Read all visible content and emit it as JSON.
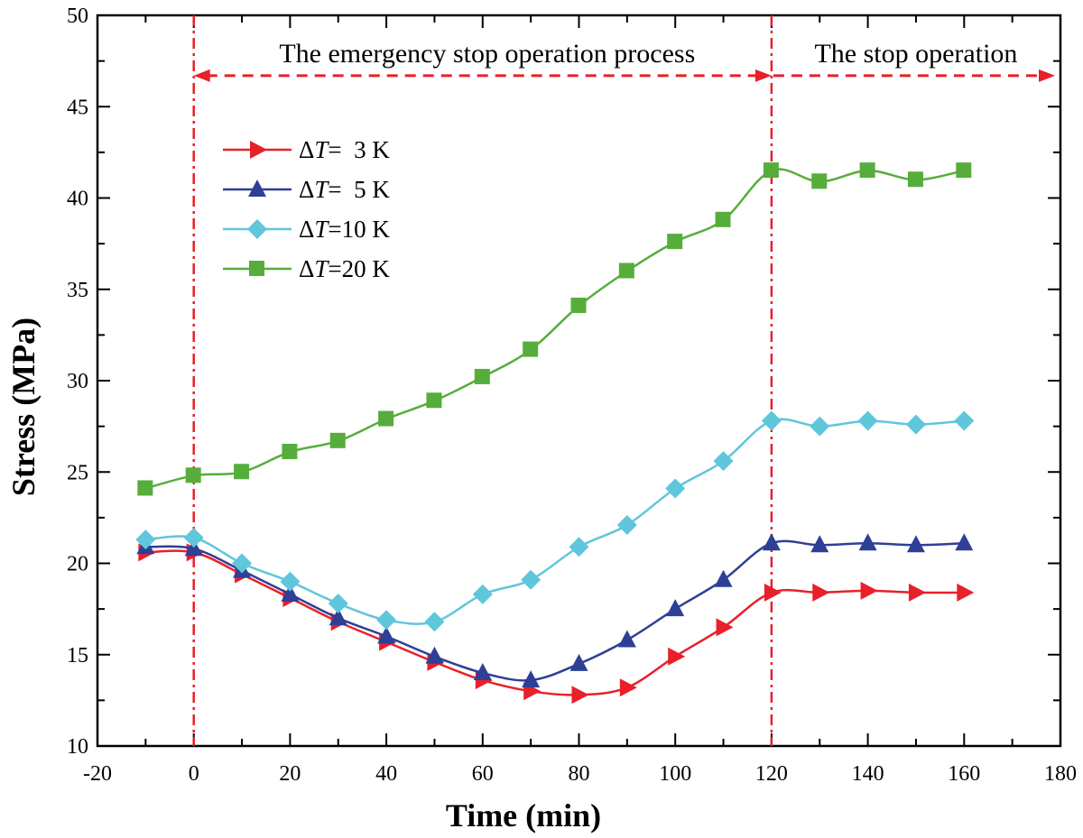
{
  "chart_data": {
    "type": "line",
    "xlabel": "Time (min)",
    "ylabel": "Stress (MPa)",
    "xlim": [
      -20,
      180
    ],
    "ylim": [
      10,
      50
    ],
    "x_ticks": [
      -20,
      0,
      20,
      40,
      60,
      80,
      100,
      120,
      140,
      160,
      180
    ],
    "x_tick_labels": [
      "-20",
      "0",
      "20",
      "40",
      "60",
      "80",
      "100",
      "120",
      "140",
      "160",
      "180"
    ],
    "y_ticks": [
      10,
      15,
      20,
      25,
      30,
      35,
      40,
      45,
      50
    ],
    "y_tick_labels": [
      "10",
      "15",
      "20",
      "25",
      "30",
      "35",
      "40",
      "45",
      "50"
    ],
    "x_minor_step": 10,
    "y_minor_step": 2.5,
    "phase_lines": [
      0,
      120
    ],
    "annotations": {
      "emergency": {
        "text": "The emergency stop operation process",
        "x_from": 0,
        "x_to": 120
      },
      "stop": {
        "text": "The stop operation",
        "x_from": 120,
        "x_to": 180
      }
    },
    "annotation_arrow_y": 46.7,
    "x": [
      -10,
      0,
      10,
      20,
      30,
      40,
      50,
      60,
      70,
      80,
      90,
      100,
      110,
      120,
      130,
      140,
      150,
      160
    ],
    "series": [
      {
        "name": "ΔT= 3 K",
        "symbol_prefix": "Δ",
        "symbol_var": "T",
        "suffix": "=  3 K",
        "color": "#e8202a",
        "marker": "triangle-right",
        "values": [
          20.6,
          20.6,
          19.4,
          18.1,
          16.8,
          15.7,
          14.6,
          13.6,
          13.0,
          12.8,
          13.2,
          14.9,
          16.5,
          18.4,
          18.4,
          18.5,
          18.4,
          18.4
        ]
      },
      {
        "name": "ΔT= 5 K",
        "symbol_prefix": "Δ",
        "symbol_var": "T",
        "suffix": "=  5 K",
        "color": "#2e3f96",
        "marker": "triangle-up",
        "values": [
          20.9,
          20.8,
          19.6,
          18.3,
          17.0,
          16.0,
          14.9,
          14.0,
          13.6,
          14.5,
          15.8,
          17.5,
          19.1,
          21.1,
          21.0,
          21.1,
          21.0,
          21.1
        ]
      },
      {
        "name": "ΔT=10 K",
        "symbol_prefix": "Δ",
        "symbol_var": "T",
        "suffix": "=10 K",
        "color": "#5fc6dc",
        "marker": "diamond",
        "values": [
          21.3,
          21.4,
          20.0,
          19.0,
          17.8,
          16.9,
          16.8,
          18.3,
          19.1,
          20.9,
          22.1,
          24.1,
          25.6,
          27.8,
          27.5,
          27.8,
          27.6,
          27.8
        ]
      },
      {
        "name": "ΔT=20 K",
        "symbol_prefix": "Δ",
        "symbol_var": "T",
        "suffix": "=20 K",
        "color": "#57ad3c",
        "marker": "square",
        "values": [
          24.1,
          24.8,
          25.0,
          26.1,
          26.7,
          27.9,
          28.9,
          30.2,
          31.7,
          34.1,
          36.0,
          37.6,
          38.8,
          41.5,
          40.9,
          41.5,
          41.0,
          41.5
        ]
      }
    ]
  }
}
